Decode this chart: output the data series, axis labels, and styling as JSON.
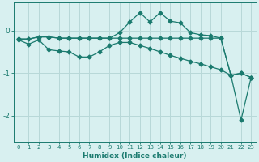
{
  "xlabel": "Humidex (Indice chaleur)",
  "background_color": "#d8f0f0",
  "grid_color": "#b8d8d8",
  "line_color": "#1a7a6e",
  "xlim": [
    -0.5,
    23.5
  ],
  "ylim": [
    -2.6,
    0.65
  ],
  "yticks": [
    0,
    -1,
    -2
  ],
  "xticks": [
    0,
    1,
    2,
    3,
    4,
    5,
    6,
    7,
    8,
    9,
    10,
    11,
    12,
    13,
    14,
    15,
    16,
    17,
    18,
    19,
    20,
    21,
    22,
    23
  ],
  "series1_x": [
    0,
    1,
    2,
    3,
    4,
    5,
    6,
    7,
    8,
    9,
    10,
    11,
    12,
    13,
    14,
    15,
    16,
    17,
    18,
    19,
    20,
    21,
    22,
    23
  ],
  "series1_y": [
    -0.2,
    -0.2,
    -0.15,
    -0.15,
    -0.18,
    -0.18,
    -0.18,
    -0.18,
    -0.18,
    -0.18,
    -0.05,
    0.2,
    0.42,
    0.2,
    0.42,
    0.22,
    0.18,
    -0.05,
    -0.1,
    -0.12,
    -0.18,
    -1.05,
    -1.0,
    -1.1
  ],
  "series2_x": [
    0,
    1,
    2,
    3,
    4,
    5,
    6,
    7,
    8,
    9,
    10,
    11,
    12,
    13,
    14,
    15,
    16,
    17,
    18,
    19,
    20,
    21,
    22,
    23
  ],
  "series2_y": [
    -0.2,
    -0.2,
    -0.15,
    -0.15,
    -0.18,
    -0.18,
    -0.18,
    -0.18,
    -0.18,
    -0.18,
    -0.18,
    -0.18,
    -0.18,
    -0.18,
    -0.18,
    -0.18,
    -0.18,
    -0.18,
    -0.18,
    -0.18,
    -0.18,
    -1.05,
    -2.1,
    -1.1
  ],
  "series3_x": [
    0,
    1,
    2,
    3,
    4,
    5,
    6,
    7,
    8,
    9,
    10,
    11,
    12,
    13,
    14,
    15,
    16,
    17,
    18,
    19,
    20,
    21,
    22,
    23
  ],
  "series3_y": [
    -0.22,
    -0.32,
    -0.22,
    -0.45,
    -0.48,
    -0.5,
    -0.62,
    -0.62,
    -0.5,
    -0.35,
    -0.28,
    -0.28,
    -0.35,
    -0.42,
    -0.5,
    -0.58,
    -0.65,
    -0.72,
    -0.78,
    -0.85,
    -0.92,
    -1.05,
    -1.0,
    -1.1
  ]
}
